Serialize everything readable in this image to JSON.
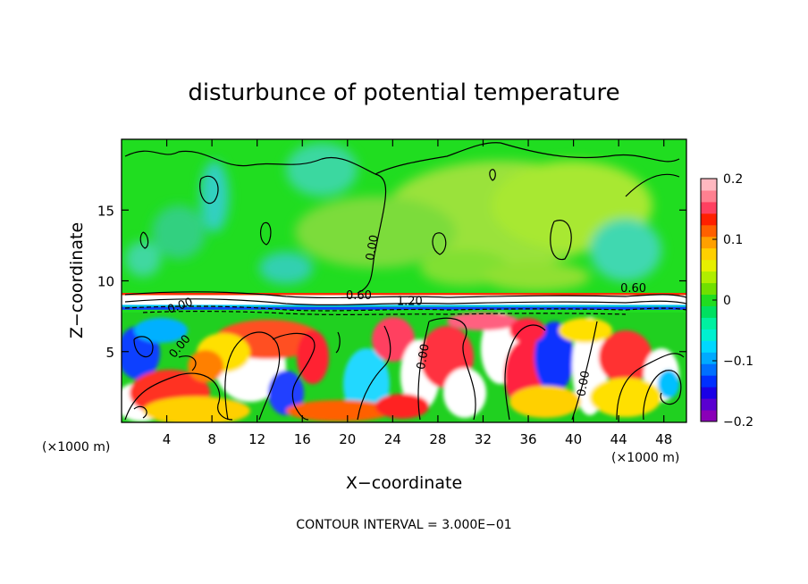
{
  "chart_data": {
    "type": "heatmap",
    "title": "disturbunce of potential temperature",
    "xlabel": "X−coordinate",
    "ylabel": "Z−coordinate",
    "x_unit_left": "(×1000 m)",
    "x_unit_right": "(×1000 m)",
    "footer": "CONTOUR INTERVAL = 3.000E−01",
    "xlim": [
      0,
      50
    ],
    "ylim": [
      0,
      20
    ],
    "x_ticks": [
      {
        "value": 4,
        "label": "4"
      },
      {
        "value": 8,
        "label": "8"
      },
      {
        "value": 12,
        "label": "12"
      },
      {
        "value": 16,
        "label": "16"
      },
      {
        "value": 20,
        "label": "20"
      },
      {
        "value": 24,
        "label": "24"
      },
      {
        "value": 28,
        "label": "28"
      },
      {
        "value": 32,
        "label": "32"
      },
      {
        "value": 36,
        "label": "36"
      },
      {
        "value": 40,
        "label": "40"
      },
      {
        "value": 44,
        "label": "44"
      },
      {
        "value": 48,
        "label": "48"
      }
    ],
    "y_ticks": [
      {
        "value": 5,
        "label": "5"
      },
      {
        "value": 10,
        "label": "10"
      },
      {
        "value": 15,
        "label": "15"
      }
    ],
    "colorbar": {
      "range": [
        -0.2,
        0.2
      ],
      "ticks": [
        {
          "value": 0.2,
          "label": "0.2"
        },
        {
          "value": 0.1,
          "label": "0.1"
        },
        {
          "value": 0,
          "label": "0"
        },
        {
          "value": -0.1,
          "label": "−0.1"
        },
        {
          "value": -0.2,
          "label": "−0.2"
        }
      ],
      "colors": [
        "#8a00b8",
        "#5a00d0",
        "#1a00e6",
        "#0030ff",
        "#0070ff",
        "#00aaff",
        "#00d8ff",
        "#00f0d0",
        "#00f0a0",
        "#00e060",
        "#20dd20",
        "#70e000",
        "#b0ee00",
        "#e6f000",
        "#ffd000",
        "#ffa000",
        "#ff6000",
        "#ff2000",
        "#ff4060",
        "#ff8090",
        "#ffb8c0"
      ]
    },
    "contour_labels": [
      {
        "text": "0.00",
        "x": 5.3,
        "z": 8.0,
        "angle": -20
      },
      {
        "text": "0.00",
        "x": 5.4,
        "z": 5.2,
        "angle": -50
      },
      {
        "text": "0.00",
        "x": 22.5,
        "z": 12.3,
        "angle": -80
      },
      {
        "text": "0.60",
        "x": 21.0,
        "z": 8.7,
        "angle": 0
      },
      {
        "text": "1.20",
        "x": 25.5,
        "z": 8.3,
        "angle": 0
      },
      {
        "text": "0.00",
        "x": 27.0,
        "z": 4.6,
        "angle": -80
      },
      {
        "text": "0.00",
        "x": 41.2,
        "z": 2.7,
        "angle": -80
      },
      {
        "text": "0.60",
        "x": 45.3,
        "z": 9.2,
        "angle": 0
      }
    ]
  }
}
